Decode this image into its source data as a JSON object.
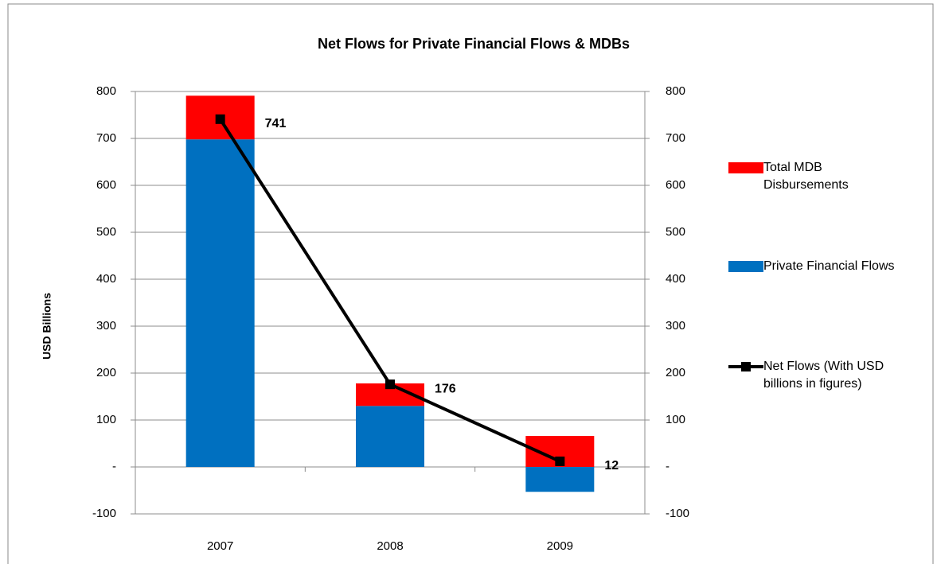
{
  "chart_data": {
    "type": "bar",
    "title": "Net Flows for Private Financial Flows & MDBs",
    "ylabel": "USD Billions",
    "categories": [
      "2007",
      "2008",
      "2009"
    ],
    "series": [
      {
        "name": "Total MDB Disbursements",
        "color": "#ff0000",
        "type": "bar",
        "values": [
          93,
          48,
          66
        ]
      },
      {
        "name": "Private Financial Flows",
        "color": "#0070c0",
        "type": "bar",
        "values": [
          698,
          130,
          -53
        ]
      },
      {
        "name": "Net Flows (With USD billions in figures)",
        "color": "#000000",
        "type": "line",
        "axis": "y2",
        "values": [
          741,
          176,
          12
        ]
      }
    ],
    "stack_order": [
      1,
      0
    ],
    "ylim": [
      -100,
      800
    ],
    "yticks": [
      -100,
      {
        "value": 0,
        "label": "-"
      },
      100,
      200,
      300,
      400,
      500,
      600,
      700,
      800
    ],
    "y2lim": [
      -100,
      800
    ],
    "y2ticks": [
      -100,
      {
        "value": 0,
        "label": "-"
      },
      100,
      200,
      300,
      400,
      500,
      600,
      700,
      800
    ],
    "grid": true,
    "legend": "right"
  }
}
